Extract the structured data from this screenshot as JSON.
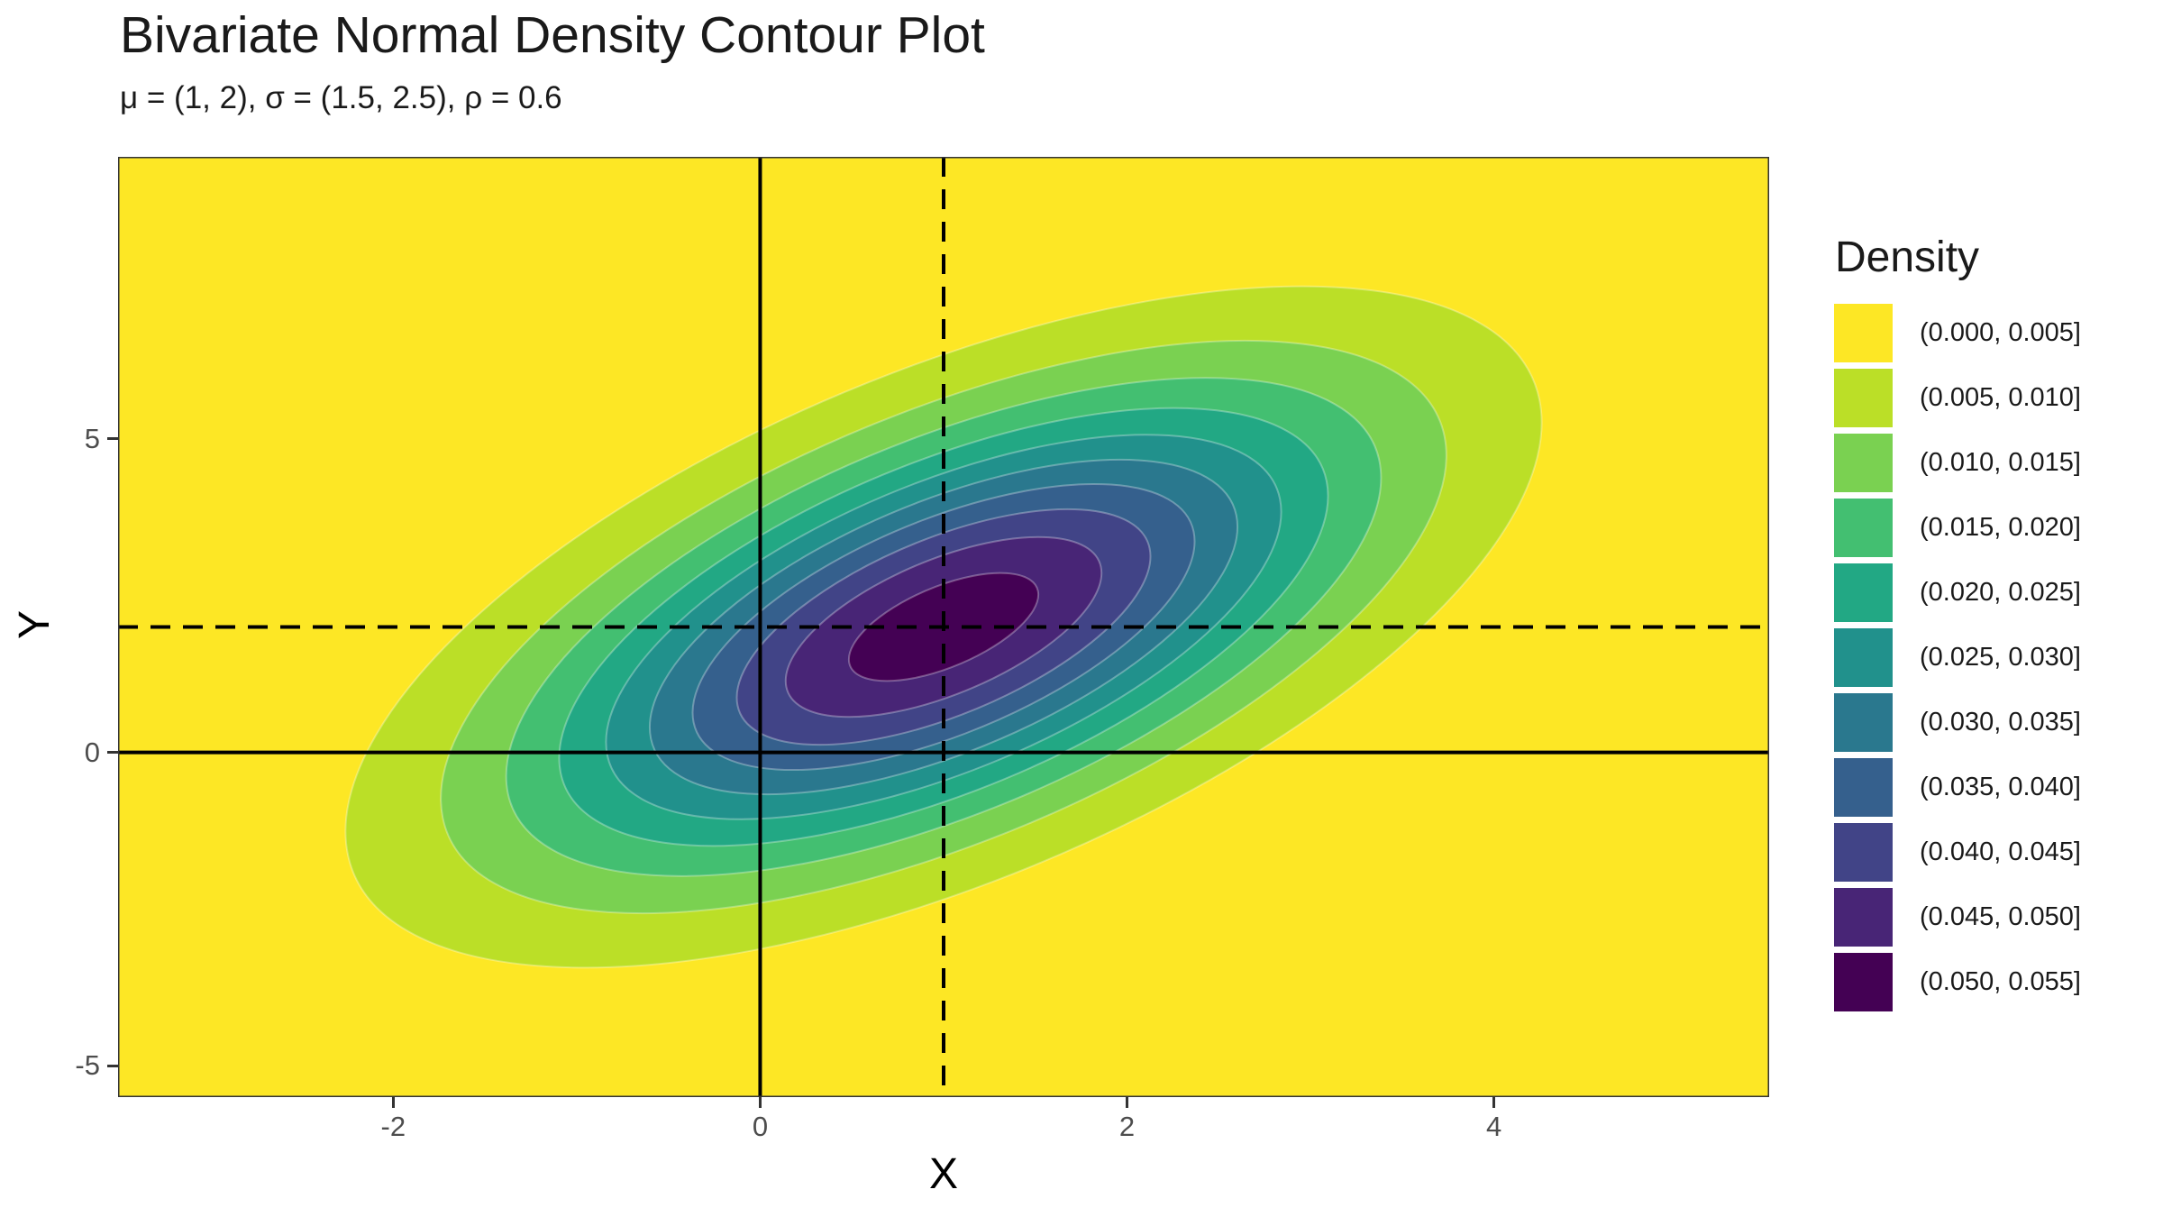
{
  "chart_data": {
    "type": "filled_contour",
    "title": "Bivariate Normal Density Contour Plot",
    "subtitle": "μ = (1, 2), σ = (1.5, 2.5), ρ = 0.6",
    "xlabel": "X",
    "ylabel": "Y",
    "x_range": [
      -3.5,
      5.5
    ],
    "y_range": [
      -5.5,
      9.5
    ],
    "x_ticks": [
      {
        "value": -2,
        "label": "-2"
      },
      {
        "value": 0,
        "label": "0"
      },
      {
        "value": 2,
        "label": "2"
      },
      {
        "value": 4,
        "label": "4"
      }
    ],
    "y_ticks": [
      {
        "value": -5,
        "label": "-5"
      },
      {
        "value": 0,
        "label": "0"
      },
      {
        "value": 5,
        "label": "5"
      }
    ],
    "distribution": {
      "mu": [
        1,
        2
      ],
      "sigma": [
        1.5,
        2.5
      ],
      "rho": 0.6
    },
    "contour_levels": [
      0.005,
      0.01,
      0.015,
      0.02,
      0.025,
      0.03,
      0.035,
      0.04,
      0.045,
      0.05
    ],
    "bands": [
      {
        "label": "(0.000, 0.005]",
        "color": "#FDE725"
      },
      {
        "label": "(0.005, 0.010]",
        "color": "#BBDF27"
      },
      {
        "label": "(0.010, 0.015]",
        "color": "#7AD151"
      },
      {
        "label": "(0.015, 0.020]",
        "color": "#43BF71"
      },
      {
        "label": "(0.020, 0.025]",
        "color": "#22A884"
      },
      {
        "label": "(0.025, 0.030]",
        "color": "#21918C"
      },
      {
        "label": "(0.030, 0.035]",
        "color": "#2A788E"
      },
      {
        "label": "(0.035, 0.040]",
        "color": "#35608D"
      },
      {
        "label": "(0.040, 0.045]",
        "color": "#414487"
      },
      {
        "label": "(0.045, 0.050]",
        "color": "#482576"
      },
      {
        "label": "(0.050, 0.055]",
        "color": "#440154"
      }
    ],
    "reference_lines": [
      {
        "orientation": "vertical",
        "at": 0,
        "style": "solid"
      },
      {
        "orientation": "horizontal",
        "at": 0,
        "style": "solid"
      },
      {
        "orientation": "vertical",
        "at": 1,
        "style": "dashed"
      },
      {
        "orientation": "horizontal",
        "at": 2,
        "style": "dashed"
      }
    ],
    "legend": {
      "title": "Density",
      "position": "right"
    }
  }
}
